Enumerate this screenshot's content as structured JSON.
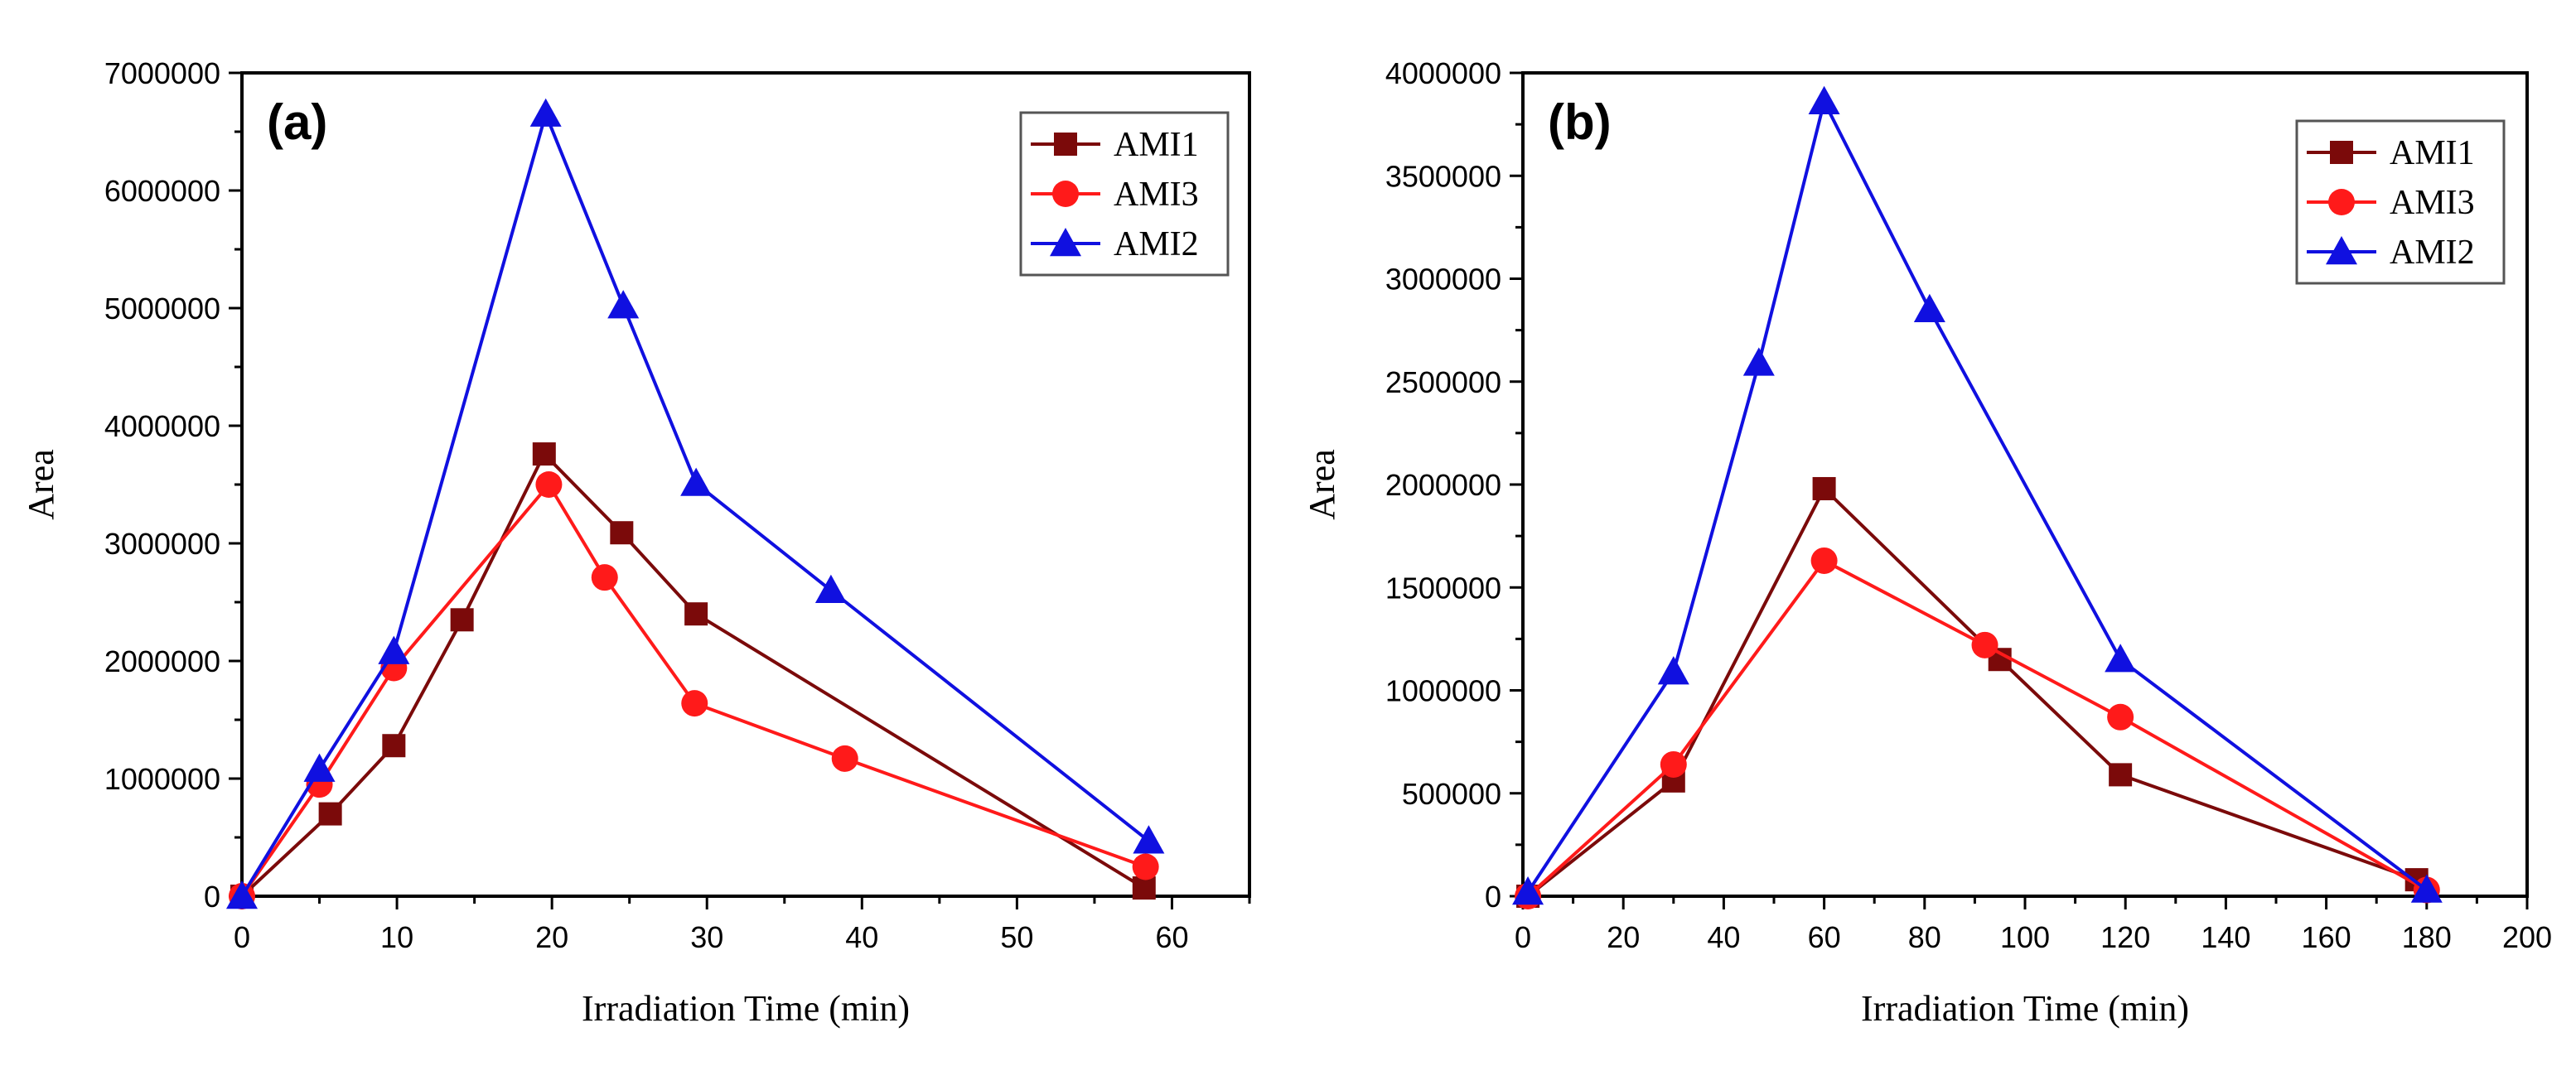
{
  "chart_data": [
    {
      "type": "line",
      "panel_label": "(a)",
      "xlabel": "Irradiation Time (min)",
      "ylabel": "Area",
      "xlim": [
        0,
        65
      ],
      "ylim": [
        0,
        7000000
      ],
      "xticks": [
        0,
        10,
        20,
        30,
        40,
        50,
        60
      ],
      "yticks": [
        0,
        1000000,
        2000000,
        3000000,
        4000000,
        5000000,
        6000000,
        7000000
      ],
      "xtick_labels": [
        "0",
        "10",
        "20",
        "30",
        "40",
        "50",
        "60"
      ],
      "ytick_labels": [
        "0",
        "1000000",
        "2000000",
        "3000000",
        "4000000",
        "5000000",
        "6000000",
        "7000000"
      ],
      "legend_position": "top-right",
      "series": [
        {
          "name": "AMI1",
          "color": "#7b0a0a",
          "marker": "square",
          "x": [
            0,
            5.7,
            9.8,
            14.2,
            19.5,
            24.5,
            29.3,
            58.2
          ],
          "y": [
            0,
            700000,
            1280000,
            2350000,
            3760000,
            3090000,
            2400000,
            70000
          ]
        },
        {
          "name": "AMI3",
          "color": "#ff1a1a",
          "marker": "circle",
          "x": [
            0,
            5.0,
            9.8,
            19.8,
            23.4,
            29.2,
            38.9,
            58.3
          ],
          "y": [
            0,
            950000,
            1940000,
            3500000,
            2710000,
            1640000,
            1170000,
            250000
          ]
        },
        {
          "name": "AMI2",
          "color": "#1010e0",
          "marker": "triangle",
          "x": [
            0,
            5.0,
            9.8,
            19.6,
            24.6,
            29.3,
            38.0,
            58.5
          ],
          "y": [
            0,
            1080000,
            2080000,
            6650000,
            5020000,
            3510000,
            2600000,
            470000
          ]
        }
      ]
    },
    {
      "type": "line",
      "panel_label": "(b)",
      "xlabel": "Irradiation Time (min)",
      "ylabel": "Area",
      "xlim": [
        0,
        200
      ],
      "ylim": [
        0,
        4000000
      ],
      "xticks": [
        0,
        20,
        40,
        60,
        80,
        100,
        120,
        140,
        160,
        180,
        200
      ],
      "yticks": [
        0,
        500000,
        1000000,
        1500000,
        2000000,
        2500000,
        3000000,
        3500000,
        4000000
      ],
      "xtick_labels": [
        "0",
        "20",
        "40",
        "60",
        "80",
        "100",
        "120",
        "140",
        "160",
        "180",
        "200"
      ],
      "ytick_labels": [
        "0",
        "500000",
        "1000000",
        "1500000",
        "2000000",
        "2500000",
        "3000000",
        "3500000",
        "4000000"
      ],
      "legend_position": "top-right",
      "series": [
        {
          "name": "AMI1",
          "color": "#7b0a0a",
          "marker": "square",
          "x": [
            1,
            30,
            60,
            95,
            119,
            178
          ],
          "y": [
            0,
            560000,
            1980000,
            1150000,
            590000,
            80000
          ]
        },
        {
          "name": "AMI3",
          "color": "#ff1a1a",
          "marker": "circle",
          "x": [
            1,
            30,
            60,
            92,
            119,
            180
          ],
          "y": [
            0,
            640000,
            1630000,
            1220000,
            870000,
            30000
          ]
        },
        {
          "name": "AMI2",
          "color": "#1010e0",
          "marker": "triangle",
          "x": [
            1,
            30,
            47,
            60,
            81,
            119,
            180
          ],
          "y": [
            20000,
            1090000,
            2590000,
            3860000,
            2850000,
            1150000,
            30000
          ]
        }
      ]
    }
  ]
}
